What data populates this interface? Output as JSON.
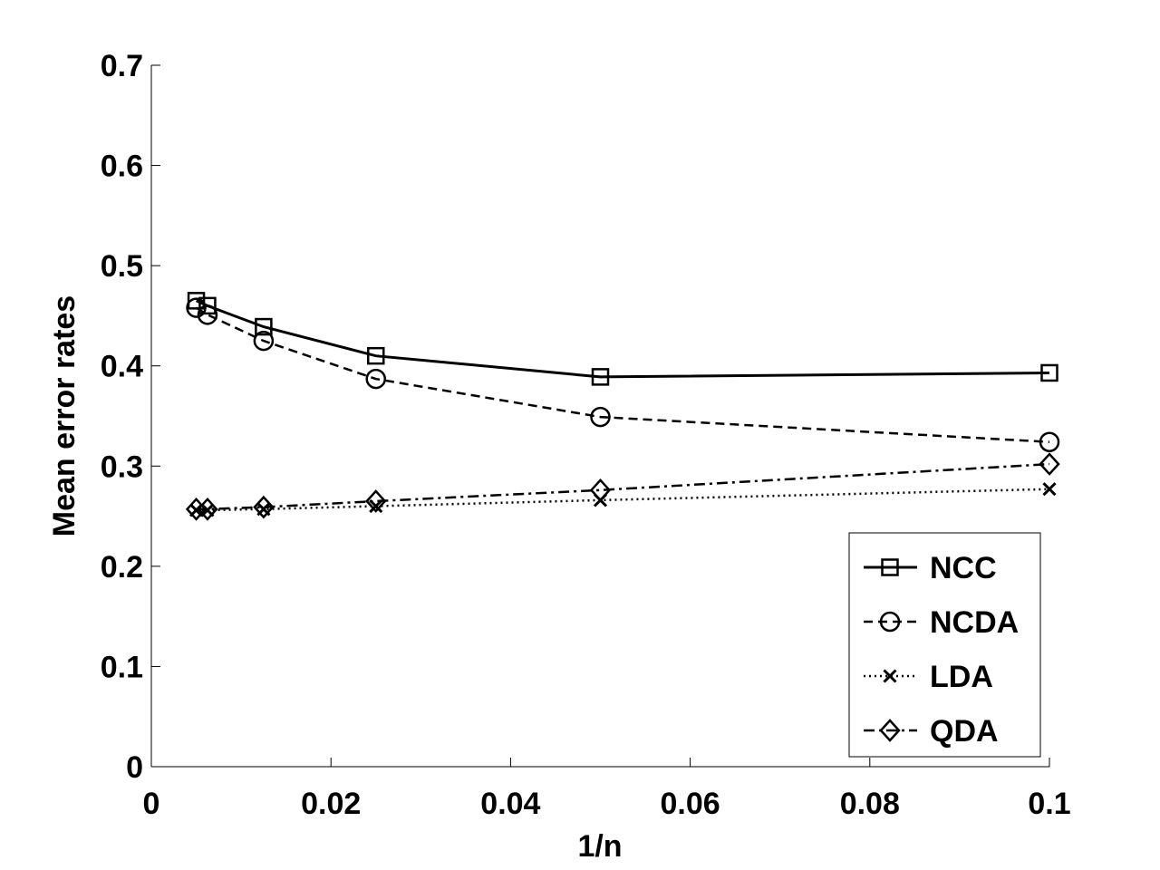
{
  "chart_data": {
    "type": "line",
    "title": "",
    "xlabel": "1/n",
    "ylabel": "Mean error rates",
    "xlim": [
      0,
      0.1
    ],
    "ylim": [
      0,
      0.7
    ],
    "xticks": [
      0,
      0.02,
      0.04,
      0.06,
      0.08,
      0.1
    ],
    "xtick_labels": [
      "0",
      "0.02",
      "0.04",
      "0.06",
      "0.08",
      "0.1"
    ],
    "yticks": [
      0,
      0.1,
      0.2,
      0.3,
      0.4,
      0.5,
      0.6,
      0.7
    ],
    "ytick_labels": [
      "0",
      "0.1",
      "0.2",
      "0.3",
      "0.4",
      "0.5",
      "0.6",
      "0.7"
    ],
    "grid": false,
    "legend_position": "bottom-right",
    "x": [
      0.005,
      0.00625,
      0.0125,
      0.025,
      0.05,
      0.1
    ],
    "series": [
      {
        "name": "NCC",
        "marker": "square",
        "line_style": "solid",
        "values": [
          0.465,
          0.46,
          0.439,
          0.41,
          0.389,
          0.393
        ]
      },
      {
        "name": "NCDA",
        "marker": "circle",
        "line_style": "dashed",
        "values": [
          0.458,
          0.451,
          0.425,
          0.387,
          0.349,
          0.324
        ]
      },
      {
        "name": "LDA",
        "marker": "x",
        "line_style": "dotted",
        "values": [
          0.256,
          0.256,
          0.257,
          0.26,
          0.266,
          0.277
        ]
      },
      {
        "name": "QDA",
        "marker": "diamond",
        "line_style": "dashdot",
        "values": [
          0.257,
          0.257,
          0.259,
          0.265,
          0.276,
          0.302
        ]
      }
    ]
  }
}
